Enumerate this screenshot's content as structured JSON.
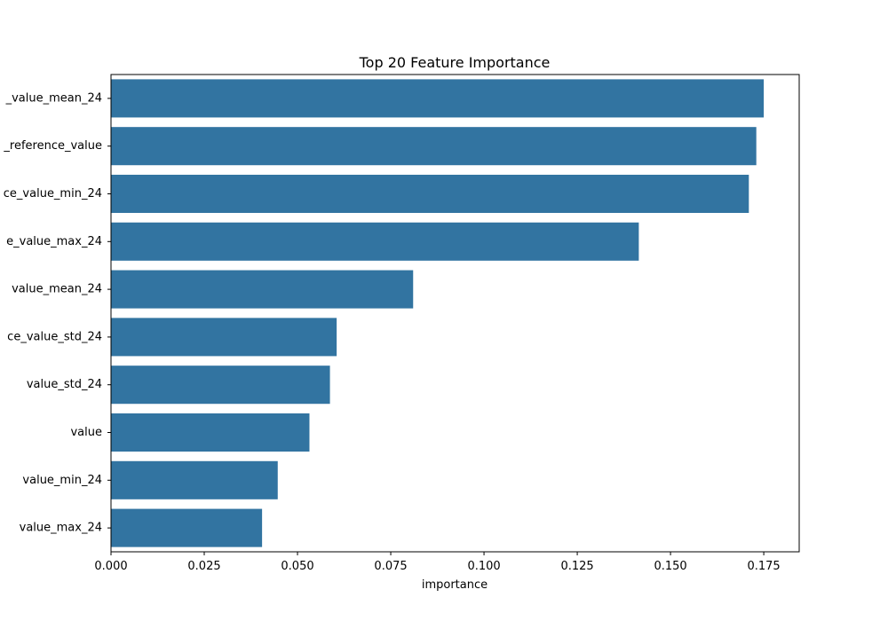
{
  "chart_data": {
    "type": "bar",
    "orientation": "horizontal",
    "title": "Top 20 Feature Importance",
    "xlabel": "importance",
    "ylabel": "",
    "xlim": [
      0,
      0.1845
    ],
    "xticks": [
      "0.000",
      "0.025",
      "0.050",
      "0.075",
      "0.100",
      "0.125",
      "0.150",
      "0.175"
    ],
    "grid": false,
    "bar_color": "#3274a1",
    "categories": [
      "_value_mean_24",
      "_reference_value",
      "ce_value_min_24",
      "e_value_max_24",
      "value_mean_24",
      "ce_value_std_24",
      "value_std_24",
      "value",
      "value_min_24",
      "value_max_24"
    ],
    "values": [
      0.175,
      0.173,
      0.171,
      0.1415,
      0.081,
      0.0605,
      0.0587,
      0.0532,
      0.0447,
      0.0405
    ]
  }
}
